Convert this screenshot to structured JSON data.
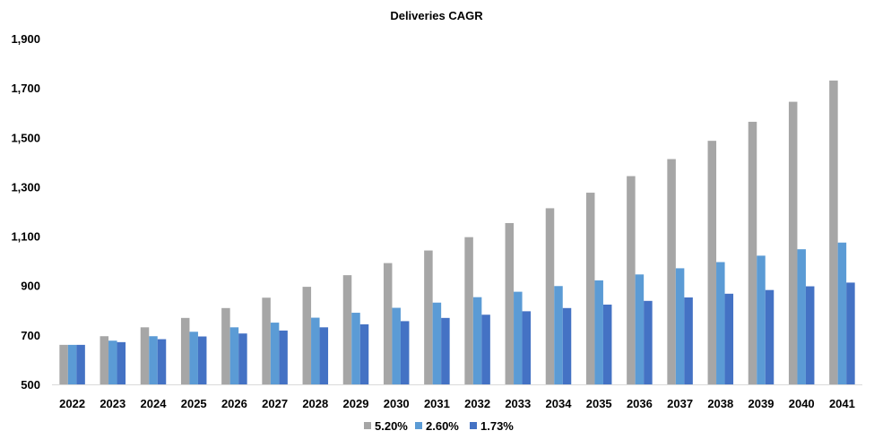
{
  "chart_data": {
    "type": "bar",
    "title": "Deliveries CAGR",
    "xlabel": "",
    "ylabel": "",
    "ylim": [
      500,
      1900
    ],
    "yticks": [
      500,
      700,
      900,
      1100,
      1300,
      1500,
      1700,
      1900
    ],
    "ytick_labels": [
      "500",
      "700",
      "900",
      "1,100",
      "1,300",
      "1,500",
      "1,700",
      "1,900"
    ],
    "grid": false,
    "legend_position": "bottom",
    "categories": [
      "2022",
      "2023",
      "2024",
      "2025",
      "2026",
      "2027",
      "2028",
      "2029",
      "2030",
      "2031",
      "2032",
      "2033",
      "2034",
      "2035",
      "2036",
      "2037",
      "2038",
      "2039",
      "2040",
      "2041"
    ],
    "series": [
      {
        "name": "5.20%",
        "color": "#a6a6a6",
        "values": [
          660,
          695,
          731,
          769,
          809,
          851,
          895,
          942,
          991,
          1042,
          1096,
          1153,
          1213,
          1276,
          1343,
          1412,
          1486,
          1563,
          1644,
          1730
        ]
      },
      {
        "name": "2.60%",
        "color": "#5b9bd5",
        "values": [
          660,
          677,
          695,
          713,
          731,
          750,
          770,
          790,
          810,
          831,
          853,
          875,
          898,
          921,
          945,
          970,
          995,
          1021,
          1047,
          1074
        ]
      },
      {
        "name": "1.73%",
        "color": "#4472c4",
        "values": [
          660,
          671,
          683,
          694,
          706,
          718,
          731,
          743,
          756,
          769,
          782,
          796,
          809,
          823,
          838,
          852,
          867,
          882,
          897,
          912
        ]
      }
    ]
  }
}
